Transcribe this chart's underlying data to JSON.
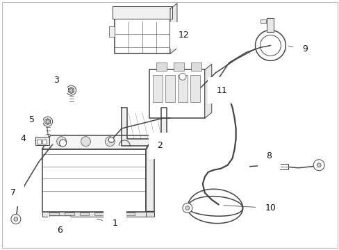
{
  "bg_color": "#ffffff",
  "line_color": "#444444",
  "label_color": "#111111",
  "fig_width": 4.89,
  "fig_height": 3.6,
  "dpi": 100
}
